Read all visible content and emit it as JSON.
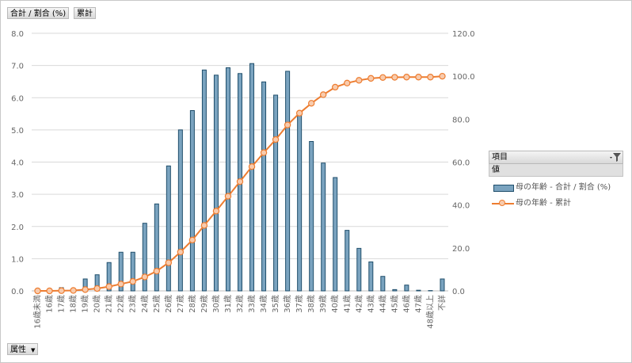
{
  "buttons": {
    "series1": "合計 / 割合 (%)",
    "series2": "累計",
    "attribute": "属性"
  },
  "legend": {
    "header": "項目",
    "sub": "値",
    "item1": "母の年齢 - 合計 / 割合 (%)",
    "item2": "母の年齢 - 累計"
  },
  "colors": {
    "bar_fill": "#7aa3bf",
    "bar_stroke": "#1f4e6b",
    "line": "#ed7d31",
    "marker_fill": "#f8cbad",
    "grid": "#d9d9d9"
  },
  "chart_data": {
    "type": "bar",
    "categories": [
      "16歳未満",
      "16歳",
      "17歳",
      "18歳",
      "19歳",
      "20歳",
      "21歳",
      "22歳",
      "23歳",
      "24歳",
      "25歳",
      "26歳",
      "27歳",
      "28歳",
      "29歳",
      "30歳",
      "31歳",
      "32歳",
      "33歳",
      "34歳",
      "35歳",
      "36歳",
      "37歳",
      "38歳",
      "39歳",
      "40歳",
      "41歳",
      "42歳",
      "43歳",
      "44歳",
      "45歳",
      "46歳",
      "47歳",
      "48歳以上",
      "不詳"
    ],
    "series": [
      {
        "name": "母の年齢 - 合計 / 割合 (%)",
        "axis": "left",
        "type": "bar",
        "values": [
          0.0,
          0.0,
          0.1,
          0.05,
          0.37,
          0.5,
          0.88,
          1.2,
          1.2,
          2.1,
          2.7,
          3.88,
          5.0,
          5.6,
          6.86,
          6.7,
          6.93,
          6.75,
          7.06,
          6.49,
          6.08,
          6.82,
          5.46,
          4.64,
          3.97,
          3.52,
          1.88,
          1.32,
          0.9,
          0.45,
          0.04,
          0.18,
          0.02,
          0.01,
          0.37
        ]
      },
      {
        "name": "母の年齢 - 累計",
        "axis": "right",
        "type": "line",
        "values": [
          0.0,
          0.0,
          0.1,
          0.2,
          0.6,
          1.1,
          2.0,
          3.2,
          4.4,
          6.5,
          9.2,
          13.1,
          18.1,
          23.7,
          30.5,
          37.2,
          44.1,
          50.9,
          57.9,
          64.4,
          70.5,
          77.3,
          82.8,
          87.4,
          91.4,
          94.9,
          96.8,
          98.1,
          99.0,
          99.4,
          99.5,
          99.6,
          99.6,
          99.6,
          100.0
        ]
      }
    ],
    "ylim_left": [
      0,
      8
    ],
    "yticks_left": [
      "0.0",
      "1.0",
      "2.0",
      "3.0",
      "4.0",
      "5.0",
      "6.0",
      "7.0",
      "8.0"
    ],
    "ylim_right": [
      0,
      120
    ],
    "yticks_right": [
      "0.0",
      "20.0",
      "40.0",
      "60.0",
      "80.0",
      "100.0",
      "120.0"
    ],
    "grid": true,
    "legend_position": "right"
  }
}
